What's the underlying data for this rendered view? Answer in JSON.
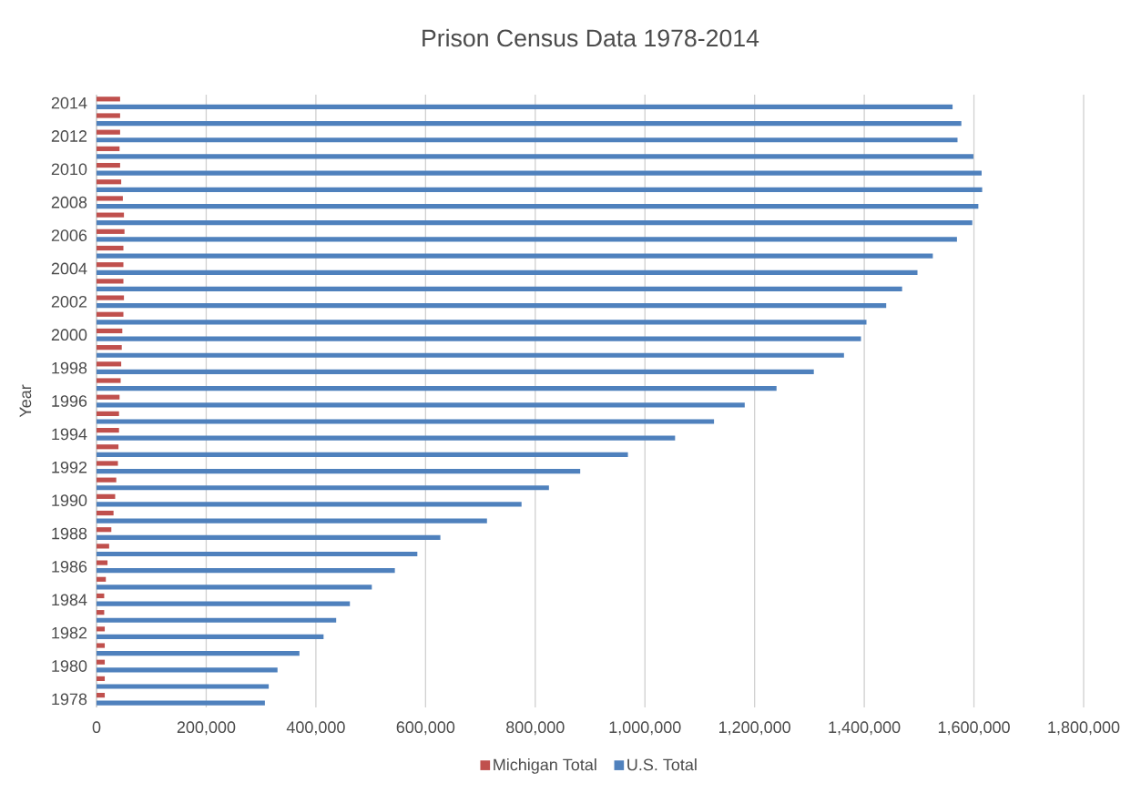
{
  "chart_data": {
    "type": "bar",
    "orientation": "horizontal",
    "title": "Prison Census Data 1978-2014",
    "ylabel": "Year",
    "categories": [
      "2014",
      null,
      "2012",
      null,
      "2010",
      null,
      "2008",
      null,
      "2006",
      null,
      "2004",
      null,
      "2002",
      null,
      "2000",
      null,
      "1998",
      null,
      "1996",
      null,
      "1994",
      null,
      "1992",
      null,
      "1990",
      null,
      "1988",
      null,
      "1986",
      null,
      "1984",
      null,
      "1982",
      null,
      "1980",
      null,
      "1978"
    ],
    "series": [
      {
        "name": "Michigan Total",
        "color": "#c0504d",
        "values": [
          43000,
          43000,
          43000,
          42000,
          43000,
          45000,
          48000,
          50000,
          51000,
          49000,
          49000,
          49000,
          50000,
          49000,
          47000,
          46000,
          45000,
          44000,
          42000,
          41000,
          41000,
          40000,
          39000,
          36000,
          34000,
          31000,
          27000,
          23000,
          20000,
          17000,
          14000,
          14000,
          15000,
          15000,
          15000,
          15000,
          15000
        ]
      },
      {
        "name": "U.S. Total",
        "color": "#4f81bd",
        "values": [
          1561000,
          1577000,
          1570000,
          1599000,
          1614000,
          1615000,
          1608000,
          1597000,
          1569000,
          1525000,
          1497000,
          1469000,
          1440000,
          1404000,
          1394000,
          1363000,
          1308000,
          1240000,
          1182000,
          1126000,
          1055000,
          969000,
          882000,
          825000,
          775000,
          712000,
          627000,
          585000,
          544000,
          502000,
          462000,
          437000,
          414000,
          370000,
          330000,
          314000,
          307000
        ]
      }
    ],
    "xlim": [
      0,
      1800000
    ],
    "xticks": [
      0,
      {
        "value": 200000,
        "label": "200,000"
      },
      {
        "value": 400000,
        "label": "400,000"
      },
      {
        "value": 600000,
        "label": "600,000"
      },
      {
        "value": 800000,
        "label": "800,000"
      },
      {
        "value": 1000000,
        "label": "1,000,000"
      },
      {
        "value": 1200000,
        "label": "1,200,000"
      },
      {
        "value": 1400000,
        "label": "1,400,000"
      },
      {
        "value": 1600000,
        "label": "1,600,000"
      },
      {
        "value": 1800000,
        "label": "1,800,000"
      }
    ],
    "grid": "x",
    "legend": "bottom"
  }
}
